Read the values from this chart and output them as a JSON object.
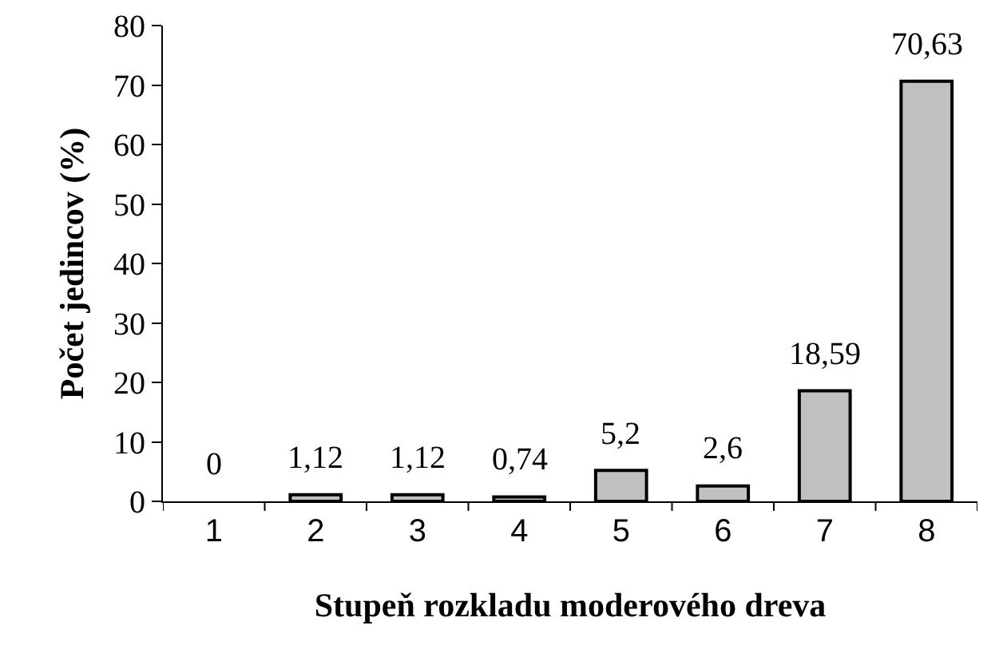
{
  "chart_data": {
    "type": "bar",
    "xlabel": "Stupeň rozkladu moderového dreva",
    "ylabel": "Počet jedincov (%)",
    "categories": [
      "1",
      "2",
      "3",
      "4",
      "5",
      "6",
      "7",
      "8"
    ],
    "values": [
      0,
      1.12,
      1.12,
      0.74,
      5.2,
      2.6,
      18.59,
      70.63
    ],
    "value_labels": [
      "0",
      "1,12",
      "1,12",
      "0,74",
      "5,2",
      "2,6",
      "18,59",
      "70,63"
    ],
    "color": "#c0c0c0",
    "ylim": [
      0,
      80
    ],
    "yticks": [
      0,
      10,
      20,
      30,
      40,
      50,
      60,
      70,
      80
    ],
    "grid": false
  }
}
